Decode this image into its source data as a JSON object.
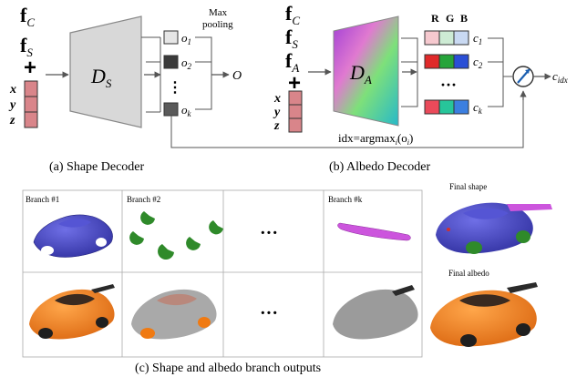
{
  "shape_decoder": {
    "inputs": {
      "f_c_base": "f",
      "f_c_sub": "C",
      "f_s_base": "f",
      "f_s_sub": "S"
    },
    "plus": "+",
    "coords": [
      "x",
      "y",
      "z"
    ],
    "block_base": "D",
    "block_sub": "S",
    "max_pooling_line1": "Max",
    "max_pooling_line2": "pooling",
    "outputs": [
      {
        "base": "o",
        "sub": "1",
        "color": "#e6e6e6"
      },
      {
        "base": "o",
        "sub": "2",
        "color": "#3a3a3a"
      },
      {
        "base": "o",
        "sub": "k",
        "color": "#5a5a5a"
      }
    ],
    "dots": "⋮",
    "pooled_output": "O",
    "caption": "(a) Shape Decoder"
  },
  "albedo_decoder": {
    "inputs": {
      "f_c_base": "f",
      "f_c_sub": "C",
      "f_s_base": "f",
      "f_s_sub": "S",
      "f_a_base": "f",
      "f_a_sub": "A"
    },
    "plus": "+",
    "coords": [
      "x",
      "y",
      "z"
    ],
    "block_base": "D",
    "block_sub": "A",
    "rgb_header": [
      "R",
      "G",
      "B"
    ],
    "color_rows": [
      {
        "colors": [
          "#f6c9cf",
          "#cdebd4",
          "#c9d9f2"
        ],
        "base": "c",
        "sub": "1"
      },
      {
        "colors": [
          "#e02a2a",
          "#26a43a",
          "#2a4fd6"
        ],
        "base": "c",
        "sub": "2"
      },
      {
        "colors": [
          "#ea4a5a",
          "#27c59a",
          "#3b7fe0"
        ],
        "base": "c",
        "sub": "k"
      }
    ],
    "ellipsis": "···",
    "selector_output_base": "c",
    "selector_output_sub": "idx",
    "idx_formula_prefix": "idx=argmax",
    "idx_formula_sub": "i",
    "idx_formula_arg": "(o",
    "idx_formula_arg_sub": "i",
    "idx_formula_close": ")",
    "caption": "(b) Albedo Decoder"
  },
  "branch_panel": {
    "columns": [
      "Branch #1",
      "Branch #2",
      "",
      "Branch #k"
    ],
    "ellipsis": "···",
    "final_shape_label": "Final shape",
    "final_albedo_label": "Final albedo",
    "caption": "(c) Shape and albedo branch outputs",
    "colors": {
      "shape_blue": "#3f3fc4",
      "wheel_green": "#2f8a2a",
      "spoiler_magenta": "#cc55dd",
      "albedo_orange": "#f07a12",
      "ghost_grey": "#8a8a8a"
    }
  }
}
